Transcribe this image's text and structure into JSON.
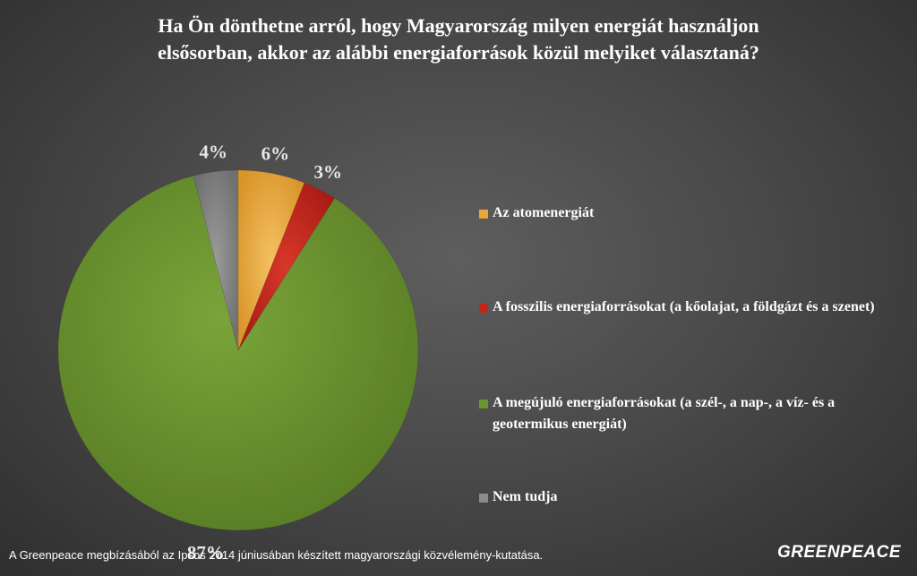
{
  "title_lines": [
    "Ha Ön dönthetne arról, hogy Magyarország milyen energiát használjon",
    "elsősorban, akkor az alábbi energiaforrások közül melyiket választaná?"
  ],
  "footer": "A Greenpeace megbízásából az Ipsos 2014 júniusában készített magyarországi közvélemény-kutatása.",
  "logo": "GREENPEACE",
  "chart_data": {
    "type": "pie",
    "title": "Ha Ön dönthetne arról, hogy Magyarország milyen energiát használjon elsősorban, akkor az alábbi energiaforrások közül melyiket választaná?",
    "legend_position": "right",
    "slices": [
      {
        "name": "Az atomenergiát",
        "value": 6,
        "label": "6%",
        "color": "#e8a73a"
      },
      {
        "name": "A fosszilis energiaforrásokat (a kőolajat, a földgázt és a szenet)",
        "value": 3,
        "label": "3%",
        "color": "#c4251b"
      },
      {
        "name": "A megújuló energiaforrásokat (a szél-, a nap-, a víz- és a geotermikus energiát)",
        "value": 87,
        "label": "87%",
        "color": "#6b9530"
      },
      {
        "name": "Nem tudja",
        "value": 4,
        "label": "4%",
        "color": "#8c8c8c"
      }
    ]
  }
}
